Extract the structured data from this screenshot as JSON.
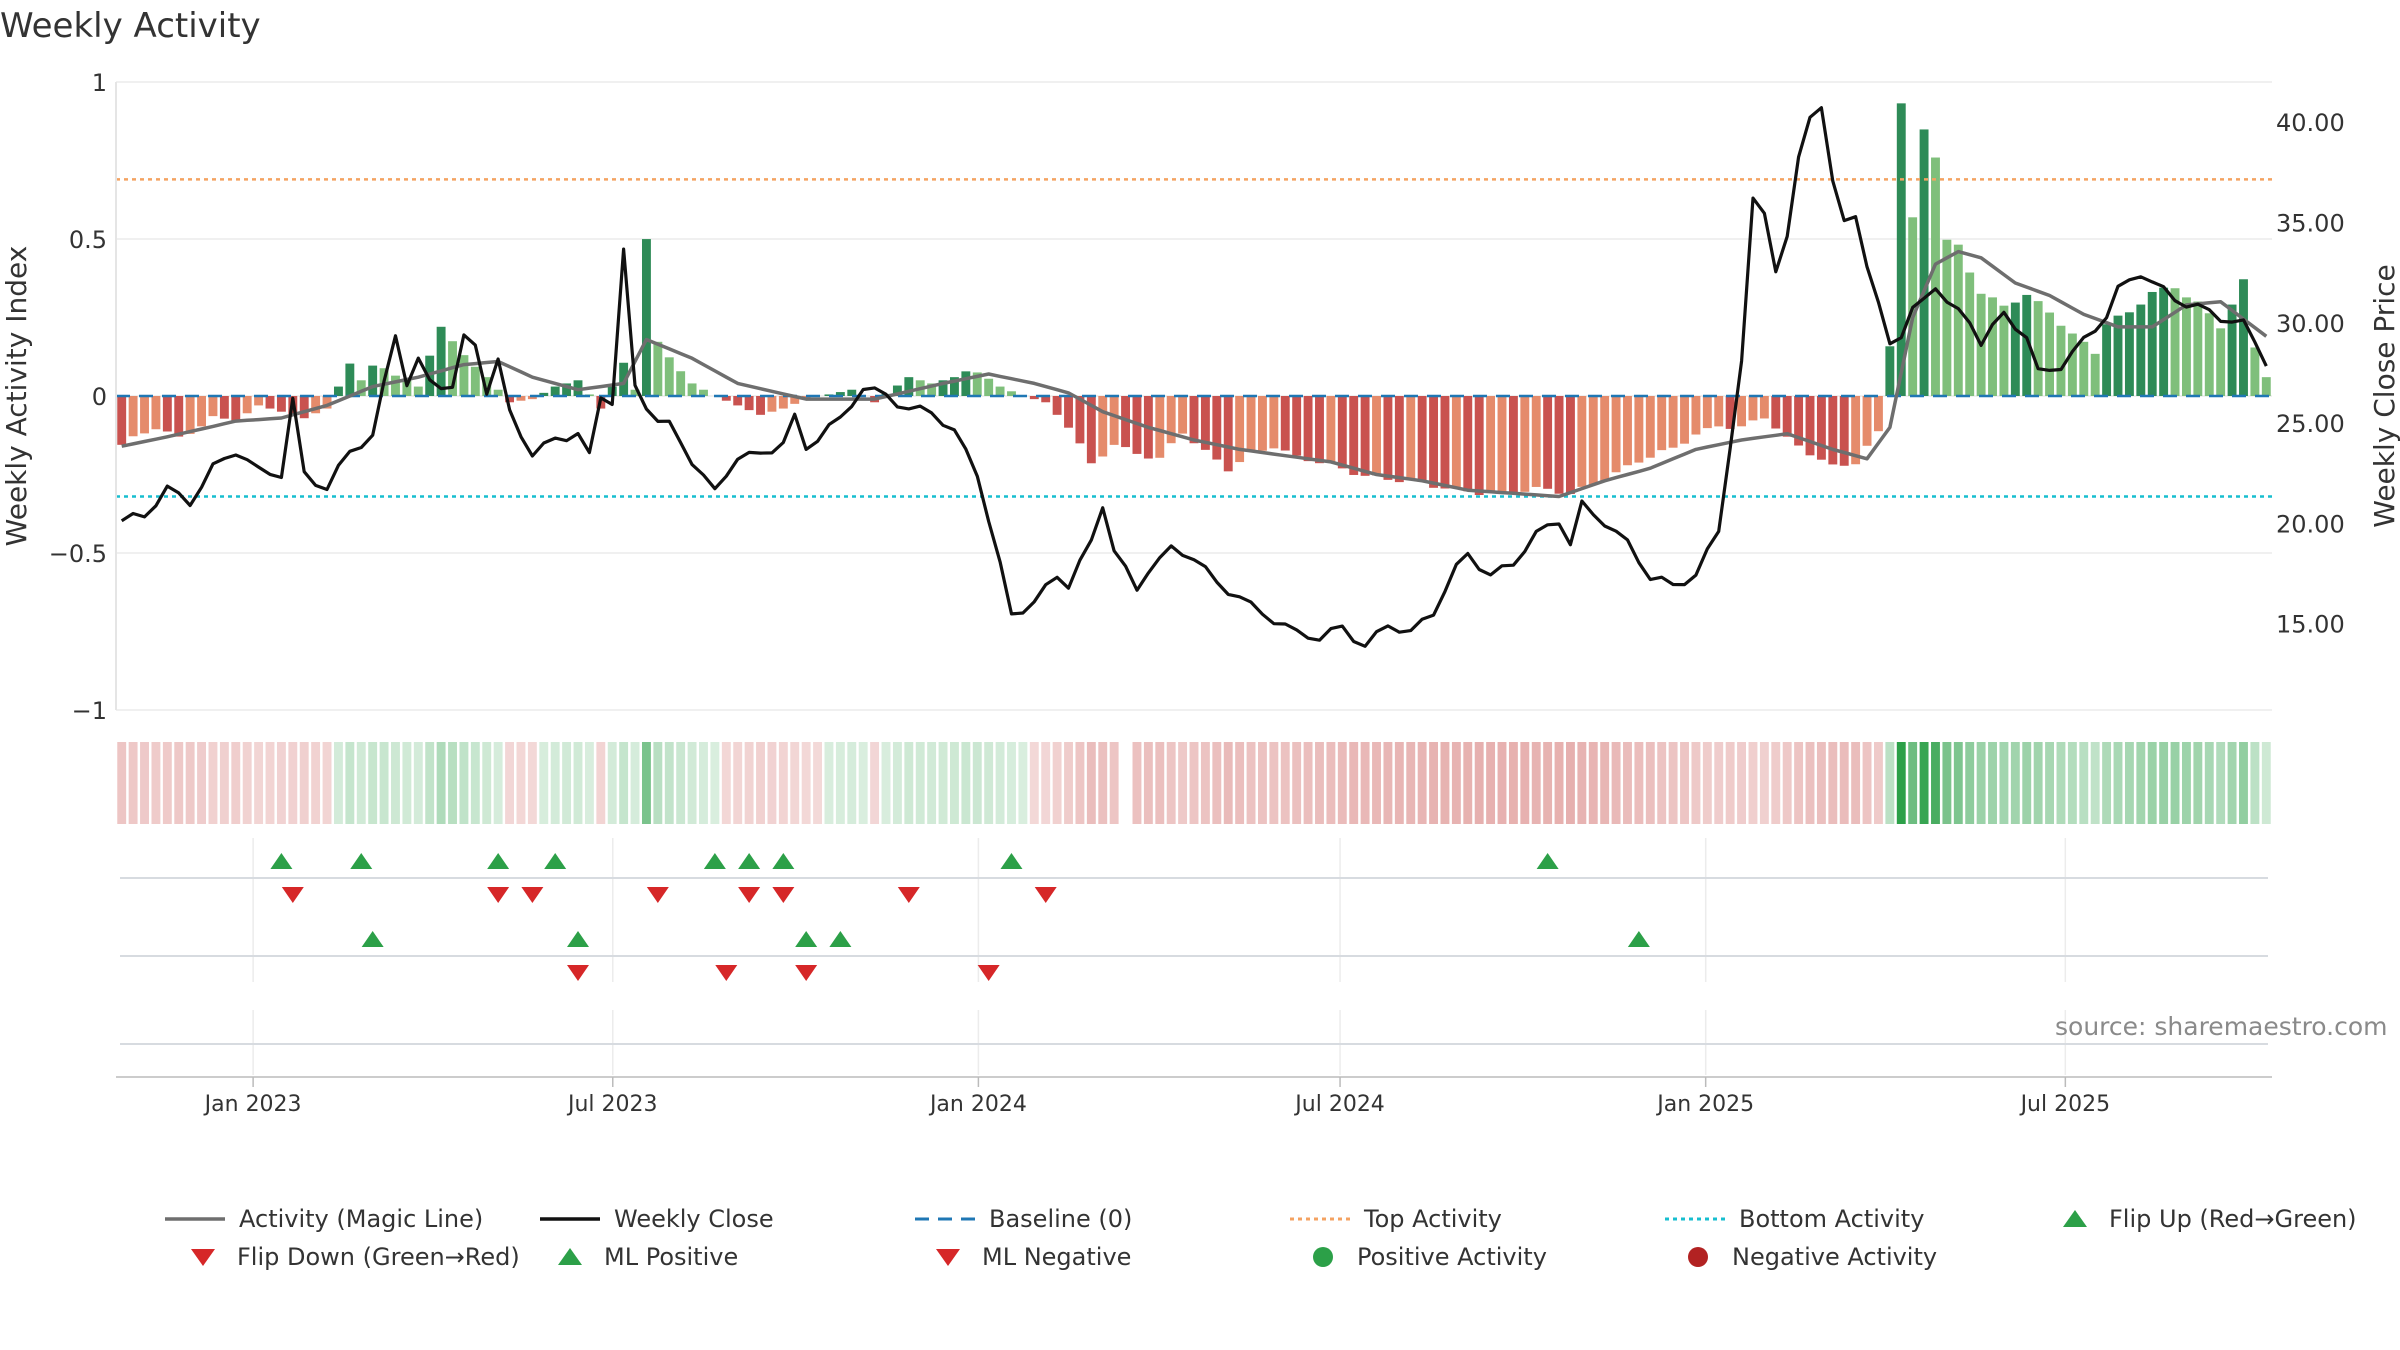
{
  "title": "Weekly Activity",
  "source": "source: sharemaestro.com",
  "colors": {
    "dark_green": "#2e8b57",
    "light_green": "#7fbf7b",
    "dark_red": "#c9524f",
    "light_red": "#e58b6b",
    "magic": "#6e6e6e",
    "close": "#111111",
    "baseline": "#1f77b4",
    "top": "#f4a261",
    "bottom": "#17becf",
    "up": "#2ca048",
    "down": "#d62728"
  },
  "legend": [
    {
      "label": "Activity (Magic Line)",
      "icon": "solid-gray-line"
    },
    {
      "label": "Weekly Close",
      "icon": "solid-black-line"
    },
    {
      "label": "Baseline (0)",
      "icon": "dashed-blue-line"
    },
    {
      "label": "Top Activity",
      "icon": "dotted-orange-line"
    },
    {
      "label": "Bottom Activity",
      "icon": "dotted-cyan-line"
    },
    {
      "label": "Flip Up (Red→Green)",
      "icon": "green-up-triangle"
    },
    {
      "label": "Flip Down (Green→Red)",
      "icon": "red-down-triangle"
    },
    {
      "label": "ML Positive",
      "icon": "green-up-triangle"
    },
    {
      "label": "ML Negative",
      "icon": "red-down-triangle"
    },
    {
      "label": "Positive Activity",
      "icon": "green-circle"
    },
    {
      "label": "Negative Activity",
      "icon": "red-circle"
    }
  ],
  "chart_data": {
    "type": "bar",
    "title": "Weekly Activity",
    "xlabel": "",
    "ylabel": "Weekly Activity Index",
    "y2label": "Weekly Close Price",
    "ylim": [
      -1,
      1
    ],
    "y2lim": [
      10.7,
      42.0
    ],
    "yticks": [
      "1",
      "0.5",
      "0",
      "−0.5",
      "−1"
    ],
    "yticks_values": [
      1,
      0.5,
      0,
      -0.5,
      -1
    ],
    "y2ticks": [
      "40.00",
      "35.00",
      "30.00",
      "25.00",
      "20.00",
      "15.00"
    ],
    "y2ticks_values": [
      40,
      35,
      30,
      25,
      20,
      15
    ],
    "x_range": [
      "2022-10-24",
      "2025-10-13"
    ],
    "xticks": [
      {
        "date": "2023-01-01",
        "label": "Jan 2023"
      },
      {
        "date": "2023-07-01",
        "label": "Jul 2023"
      },
      {
        "date": "2024-01-01",
        "label": "Jan 2024"
      },
      {
        "date": "2024-07-01",
        "label": "Jul 2024"
      },
      {
        "date": "2025-01-01",
        "label": "Jan 2025"
      },
      {
        "date": "2025-07-01",
        "label": "Jul 2025"
      }
    ],
    "reference_lines": {
      "baseline": 0,
      "top_activity": 0.69,
      "bottom_activity": -0.32
    },
    "activity_keypoints": [
      [
        0,
        -0.16
      ],
      [
        3,
        -0.1
      ],
      [
        5,
        -0.13
      ],
      [
        8,
        -0.07
      ],
      [
        10,
        -0.08
      ],
      [
        12,
        -0.03
      ],
      [
        14,
        -0.05
      ],
      [
        16,
        -0.07
      ],
      [
        18,
        -0.04
      ],
      [
        20,
        0.1
      ],
      [
        21,
        0.05
      ],
      [
        22,
        0.09
      ],
      [
        24,
        0.07
      ],
      [
        26,
        0.03
      ],
      [
        28,
        0.23
      ],
      [
        30,
        0.12
      ],
      [
        32,
        0.06
      ],
      [
        34,
        -0.02
      ],
      [
        36,
        -0.01
      ],
      [
        38,
        0.03
      ],
      [
        40,
        0.05
      ],
      [
        42,
        -0.04
      ],
      [
        44,
        0.1
      ],
      [
        45,
        0.02
      ],
      [
        46,
        0.51
      ],
      [
        47,
        0.18
      ],
      [
        48,
        0.12
      ],
      [
        50,
        0.04
      ],
      [
        52,
        0.0
      ],
      [
        54,
        -0.03
      ],
      [
        56,
        -0.06
      ],
      [
        58,
        -0.04
      ],
      [
        60,
        -0.01
      ],
      [
        64,
        0.02
      ],
      [
        66,
        -0.02
      ],
      [
        69,
        0.06
      ],
      [
        71,
        0.04
      ],
      [
        73,
        0.06
      ],
      [
        75,
        0.08
      ],
      [
        77,
        0.03
      ],
      [
        79,
        0.0
      ],
      [
        81,
        -0.02
      ],
      [
        83,
        -0.1
      ],
      [
        85,
        -0.22
      ],
      [
        87,
        -0.15
      ],
      [
        89,
        -0.18
      ],
      [
        91,
        -0.2
      ],
      [
        93,
        -0.12
      ],
      [
        95,
        -0.18
      ],
      [
        97,
        -0.23
      ],
      [
        99,
        -0.18
      ],
      [
        101,
        -0.16
      ],
      [
        103,
        -0.2
      ],
      [
        106,
        -0.22
      ],
      [
        109,
        -0.25
      ],
      [
        112,
        -0.27
      ],
      [
        115,
        -0.29
      ],
      [
        118,
        -0.3
      ],
      [
        121,
        -0.31
      ],
      [
        124,
        -0.3
      ],
      [
        127,
        -0.31
      ],
      [
        130,
        -0.26
      ],
      [
        133,
        -0.21
      ],
      [
        136,
        -0.17
      ],
      [
        138,
        -0.12
      ],
      [
        140,
        -0.09
      ],
      [
        142,
        -0.1
      ],
      [
        144,
        -0.07
      ],
      [
        146,
        -0.14
      ],
      [
        148,
        -0.18
      ],
      [
        150,
        -0.22
      ],
      [
        152,
        -0.21
      ],
      [
        154,
        -0.12
      ],
      [
        155,
        0.16
      ],
      [
        156,
        0.93
      ],
      [
        157,
        0.56
      ],
      [
        158,
        0.85
      ],
      [
        159,
        0.77
      ],
      [
        160,
        0.5
      ],
      [
        161,
        0.48
      ],
      [
        162,
        0.4
      ],
      [
        163,
        0.33
      ],
      [
        165,
        0.28
      ],
      [
        167,
        0.32
      ],
      [
        169,
        0.27
      ],
      [
        171,
        0.2
      ],
      [
        173,
        0.14
      ],
      [
        174,
        0.23
      ],
      [
        176,
        0.26
      ],
      [
        178,
        0.33
      ],
      [
        180,
        0.35
      ],
      [
        182,
        0.3
      ],
      [
        184,
        0.22
      ],
      [
        186,
        0.36
      ],
      [
        187,
        0.15
      ],
      [
        188,
        0.06
      ]
    ],
    "magic_line_keypoints": [
      [
        0,
        -0.16
      ],
      [
        4,
        -0.13
      ],
      [
        10,
        -0.08
      ],
      [
        14,
        -0.07
      ],
      [
        18,
        -0.03
      ],
      [
        22,
        0.03
      ],
      [
        26,
        0.06
      ],
      [
        30,
        0.1
      ],
      [
        33,
        0.11
      ],
      [
        36,
        0.06
      ],
      [
        40,
        0.02
      ],
      [
        44,
        0.04
      ],
      [
        46,
        0.18
      ],
      [
        50,
        0.12
      ],
      [
        54,
        0.04
      ],
      [
        60,
        -0.01
      ],
      [
        66,
        -0.01
      ],
      [
        72,
        0.04
      ],
      [
        76,
        0.07
      ],
      [
        80,
        0.04
      ],
      [
        83,
        0.01
      ],
      [
        86,
        -0.05
      ],
      [
        90,
        -0.1
      ],
      [
        94,
        -0.14
      ],
      [
        98,
        -0.17
      ],
      [
        102,
        -0.19
      ],
      [
        106,
        -0.21
      ],
      [
        110,
        -0.25
      ],
      [
        114,
        -0.27
      ],
      [
        118,
        -0.3
      ],
      [
        122,
        -0.31
      ],
      [
        126,
        -0.32
      ],
      [
        130,
        -0.27
      ],
      [
        134,
        -0.23
      ],
      [
        138,
        -0.17
      ],
      [
        142,
        -0.14
      ],
      [
        146,
        -0.12
      ],
      [
        150,
        -0.17
      ],
      [
        153,
        -0.2
      ],
      [
        155,
        -0.1
      ],
      [
        157,
        0.25
      ],
      [
        159,
        0.42
      ],
      [
        161,
        0.46
      ],
      [
        163,
        0.44
      ],
      [
        166,
        0.36
      ],
      [
        169,
        0.32
      ],
      [
        172,
        0.26
      ],
      [
        175,
        0.22
      ],
      [
        178,
        0.22
      ],
      [
        181,
        0.29
      ],
      [
        184,
        0.3
      ],
      [
        188,
        0.19
      ]
    ],
    "close_keypoints": [
      [
        0,
        20.0
      ],
      [
        2,
        20.3
      ],
      [
        4,
        21.8
      ],
      [
        6,
        21.2
      ],
      [
        8,
        22.8
      ],
      [
        10,
        23.5
      ],
      [
        12,
        22.5
      ],
      [
        14,
        22.5
      ],
      [
        15,
        26.2
      ],
      [
        16,
        22.6
      ],
      [
        18,
        21.8
      ],
      [
        20,
        23.5
      ],
      [
        22,
        24.2
      ],
      [
        24,
        29.5
      ],
      [
        25,
        27.1
      ],
      [
        26,
        28.2
      ],
      [
        27,
        27.2
      ],
      [
        28,
        27.0
      ],
      [
        29,
        26.8
      ],
      [
        30,
        29.1
      ],
      [
        31,
        28.8
      ],
      [
        32,
        26.5
      ],
      [
        33,
        28.0
      ],
      [
        34,
        25.5
      ],
      [
        36,
        23.6
      ],
      [
        38,
        24.3
      ],
      [
        40,
        24.4
      ],
      [
        41,
        23.2
      ],
      [
        42,
        26.2
      ],
      [
        43,
        26.0
      ],
      [
        44,
        33.5
      ],
      [
        45,
        26.8
      ],
      [
        46,
        26.0
      ],
      [
        47,
        25.3
      ],
      [
        48,
        25.0
      ],
      [
        50,
        23.1
      ],
      [
        52,
        21.4
      ],
      [
        54,
        23.3
      ],
      [
        56,
        23.5
      ],
      [
        58,
        24.2
      ],
      [
        59,
        25.3
      ],
      [
        60,
        23.7
      ],
      [
        62,
        24.7
      ],
      [
        63,
        25.0
      ],
      [
        65,
        26.8
      ],
      [
        67,
        26.5
      ],
      [
        69,
        25.8
      ],
      [
        71,
        25.5
      ],
      [
        73,
        24.4
      ],
      [
        75,
        22.5
      ],
      [
        77,
        18.0
      ],
      [
        78,
        15.6
      ],
      [
        80,
        16.1
      ],
      [
        82,
        17.3
      ],
      [
        83,
        16.8
      ],
      [
        85,
        19.0
      ],
      [
        86,
        21.0
      ],
      [
        87,
        18.8
      ],
      [
        89,
        16.8
      ],
      [
        90,
        17.8
      ],
      [
        92,
        18.6
      ],
      [
        94,
        18.2
      ],
      [
        96,
        17.0
      ],
      [
        98,
        16.5
      ],
      [
        99,
        16.0
      ],
      [
        101,
        15.2
      ],
      [
        103,
        14.4
      ],
      [
        105,
        14.2
      ],
      [
        107,
        14.9
      ],
      [
        109,
        14.0
      ],
      [
        111,
        15.0
      ],
      [
        113,
        14.4
      ],
      [
        115,
        15.5
      ],
      [
        117,
        17.8
      ],
      [
        118,
        18.6
      ],
      [
        120,
        17.5
      ],
      [
        122,
        18.0
      ],
      [
        124,
        19.3
      ],
      [
        126,
        20.1
      ],
      [
        127,
        19.0
      ],
      [
        128,
        21.0
      ],
      [
        130,
        20.2
      ],
      [
        132,
        19.0
      ],
      [
        134,
        17.2
      ],
      [
        136,
        16.8
      ],
      [
        138,
        17.5
      ],
      [
        140,
        19.8
      ],
      [
        141,
        24.0
      ],
      [
        142,
        28.0
      ],
      [
        143,
        36.0
      ],
      [
        144,
        35.5
      ],
      [
        145,
        32.5
      ],
      [
        146,
        34.0
      ],
      [
        147,
        38.2
      ],
      [
        148,
        40.5
      ],
      [
        149,
        40.8
      ],
      [
        150,
        37.0
      ],
      [
        151,
        35.3
      ],
      [
        152,
        35.5
      ],
      [
        153,
        32.6
      ],
      [
        155,
        29.0
      ],
      [
        156,
        29.2
      ],
      [
        157,
        30.5
      ],
      [
        159,
        32.0
      ],
      [
        160,
        31.1
      ],
      [
        162,
        30.2
      ],
      [
        163,
        29.0
      ],
      [
        165,
        30.3
      ],
      [
        167,
        29.2
      ],
      [
        168,
        27.5
      ],
      [
        170,
        28.0
      ],
      [
        172,
        29.2
      ],
      [
        174,
        30.3
      ],
      [
        175,
        31.5
      ],
      [
        177,
        32.4
      ],
      [
        178,
        32.0
      ],
      [
        180,
        31.3
      ],
      [
        182,
        30.9
      ],
      [
        184,
        30.2
      ],
      [
        186,
        29.8
      ],
      [
        188,
        28.0
      ]
    ],
    "flip_up_x": [
      14,
      21,
      33,
      38,
      52,
      55,
      58,
      78,
      125
    ],
    "flip_down_x": [
      15,
      33,
      36,
      47,
      55,
      58,
      69,
      81
    ],
    "ml_positive_x": [
      22,
      40,
      60,
      63,
      133
    ],
    "ml_negative_x": [
      40,
      53,
      60,
      76
    ]
  }
}
